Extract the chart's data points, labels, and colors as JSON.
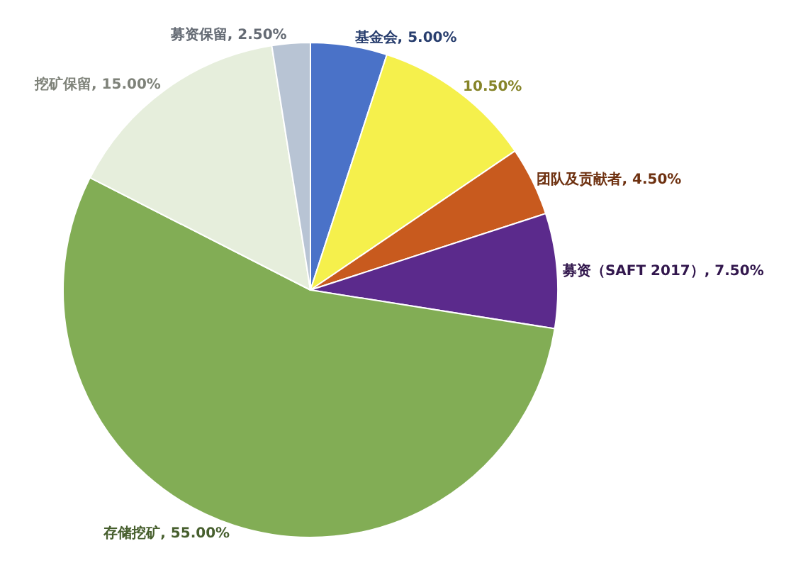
{
  "chart_data": {
    "type": "pie",
    "categories": [
      "基金会",
      null,
      "团队及贡献者",
      "募资（SAFT 2017）",
      "存储挖矿",
      "挖矿保留",
      "募资保留"
    ],
    "values": [
      5.0,
      10.5,
      4.5,
      7.5,
      55.0,
      15.0,
      2.5
    ],
    "value_labels": [
      "5.00%",
      "10.50%",
      "4.50%",
      "7.50%",
      "55.00%",
      "15.00%",
      "2.50%"
    ],
    "colors": [
      "#4a72c8",
      "#f5f04c",
      "#c85a1e",
      "#5b2a8c",
      "#82ad55",
      "#e6eedc",
      "#b8c4d4"
    ],
    "legend": false
  }
}
